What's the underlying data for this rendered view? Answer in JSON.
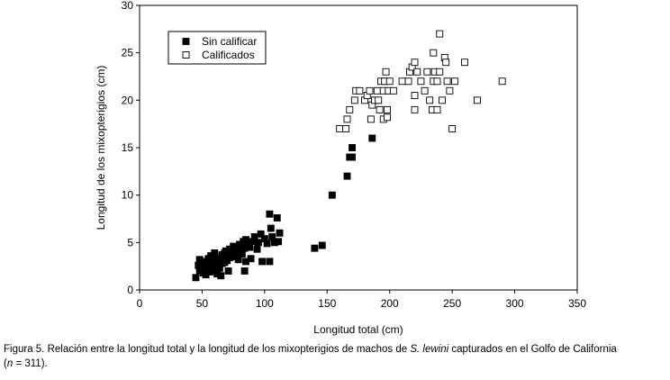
{
  "chart_data": {
    "type": "scatter",
    "xlabel": "Longitud total (cm)",
    "ylabel": "Longitud de los mixopterigios (cm)",
    "xlim": [
      0,
      350
    ],
    "ylim": [
      0,
      30
    ],
    "xticks": [
      0,
      50,
      100,
      150,
      200,
      250,
      300,
      350
    ],
    "yticks": [
      0,
      5,
      10,
      15,
      20,
      25,
      30
    ],
    "grid": false,
    "legend_position": "top-left",
    "series": [
      {
        "name": "Sin calificar",
        "marker": "filled-square",
        "color": "#000000",
        "points": [
          [
            45,
            1.3
          ],
          [
            47,
            2.6
          ],
          [
            48,
            3.2
          ],
          [
            48,
            2.0
          ],
          [
            50,
            2.9
          ],
          [
            51,
            1.8
          ],
          [
            52,
            2.5
          ],
          [
            53,
            3.0
          ],
          [
            53,
            1.6
          ],
          [
            54,
            2.2
          ],
          [
            55,
            3.3
          ],
          [
            55,
            2.8
          ],
          [
            56,
            1.9
          ],
          [
            57,
            2.4
          ],
          [
            57,
            3.6
          ],
          [
            58,
            2.7
          ],
          [
            58,
            3.1
          ],
          [
            59,
            2.0
          ],
          [
            60,
            3.9
          ],
          [
            60,
            2.5
          ],
          [
            61,
            3.2
          ],
          [
            62,
            1.7
          ],
          [
            62,
            2.9
          ],
          [
            63,
            3.4
          ],
          [
            64,
            2.3
          ],
          [
            65,
            3.0
          ],
          [
            65,
            1.5
          ],
          [
            66,
            3.7
          ],
          [
            66,
            2.8
          ],
          [
            67,
            3.3
          ],
          [
            68,
            3.9
          ],
          [
            68,
            2.9
          ],
          [
            69,
            4.1
          ],
          [
            70,
            3.6
          ],
          [
            70,
            3.1
          ],
          [
            71,
            2.0
          ],
          [
            72,
            4.3
          ],
          [
            72,
            3.4
          ],
          [
            73,
            3.8
          ],
          [
            74,
            4.0
          ],
          [
            75,
            3.5
          ],
          [
            75,
            4.6
          ],
          [
            76,
            4.1
          ],
          [
            77,
            3.9
          ],
          [
            78,
            4.5
          ],
          [
            79,
            4.0
          ],
          [
            79,
            3.2
          ],
          [
            80,
            4.8
          ],
          [
            81,
            4.3
          ],
          [
            82,
            4.7
          ],
          [
            82,
            3.8
          ],
          [
            83,
            5.1
          ],
          [
            84,
            4.4
          ],
          [
            84,
            2.0
          ],
          [
            85,
            5.3
          ],
          [
            85,
            3.0
          ],
          [
            86,
            4.8
          ],
          [
            87,
            5.0
          ],
          [
            88,
            4.5
          ],
          [
            89,
            3.3
          ],
          [
            90,
            5.1
          ],
          [
            92,
            5.6
          ],
          [
            94,
            4.3
          ],
          [
            95,
            5.0
          ],
          [
            97,
            5.9
          ],
          [
            98,
            3.0
          ],
          [
            100,
            5.4
          ],
          [
            102,
            4.9
          ],
          [
            104,
            8.0
          ],
          [
            104,
            3.0
          ],
          [
            105,
            6.5
          ],
          [
            106,
            5.6
          ],
          [
            108,
            5.0
          ],
          [
            110,
            7.6
          ],
          [
            111,
            5.1
          ],
          [
            112,
            6.0
          ],
          [
            140,
            4.4
          ],
          [
            146,
            4.7
          ],
          [
            154,
            10.0
          ],
          [
            166,
            12.0
          ],
          [
            168,
            14.0
          ],
          [
            170,
            15.0
          ],
          [
            170,
            14.0
          ],
          [
            186,
            16.0
          ]
        ]
      },
      {
        "name": "Calificados",
        "marker": "open-square",
        "color": "#000000",
        "points": [
          [
            160,
            17.0
          ],
          [
            165,
            17.0
          ],
          [
            166,
            18.0
          ],
          [
            168,
            19.0
          ],
          [
            172,
            20.0
          ],
          [
            173,
            21.0
          ],
          [
            176,
            21.0
          ],
          [
            180,
            20.0
          ],
          [
            182,
            20.5
          ],
          [
            184,
            21.0
          ],
          [
            185,
            18.0
          ],
          [
            186,
            19.5
          ],
          [
            188,
            20.0
          ],
          [
            190,
            21.0
          ],
          [
            191,
            20.0
          ],
          [
            192,
            19.0
          ],
          [
            193,
            22.0
          ],
          [
            195,
            21.0
          ],
          [
            195,
            18.0
          ],
          [
            196,
            22.0
          ],
          [
            197,
            23.0
          ],
          [
            198,
            18.2
          ],
          [
            198,
            19.0
          ],
          [
            199,
            21.0
          ],
          [
            200,
            22.0
          ],
          [
            203,
            21.0
          ],
          [
            210,
            22.0
          ],
          [
            215,
            22.0
          ],
          [
            216,
            23.0
          ],
          [
            218,
            23.5
          ],
          [
            220,
            24.0
          ],
          [
            220,
            20.5
          ],
          [
            220,
            19.0
          ],
          [
            222,
            23.0
          ],
          [
            225,
            22.0
          ],
          [
            228,
            21.0
          ],
          [
            230,
            23.0
          ],
          [
            232,
            20.0
          ],
          [
            234,
            19.0
          ],
          [
            235,
            25.0
          ],
          [
            235,
            22.0
          ],
          [
            236,
            23.0
          ],
          [
            238,
            22.0
          ],
          [
            238,
            19.0
          ],
          [
            240,
            27.0
          ],
          [
            240,
            23.0
          ],
          [
            242,
            20.0
          ],
          [
            244,
            24.5
          ],
          [
            245,
            24.0
          ],
          [
            246,
            22.0
          ],
          [
            248,
            21.0
          ],
          [
            250,
            17.0
          ],
          [
            252,
            22.0
          ],
          [
            260,
            24.0
          ],
          [
            270,
            20.0
          ],
          [
            290,
            22.0
          ]
        ]
      }
    ]
  },
  "caption": {
    "prefix": "Figura 5. Relación entre la longitud total y la longitud de los mixopterigios de machos de ",
    "species": "S. lewini",
    "suffix_line1": " capturados en el Golfo de California",
    "line2_open": "(",
    "line2_n": "n",
    "line2_rest": " = 311)."
  }
}
